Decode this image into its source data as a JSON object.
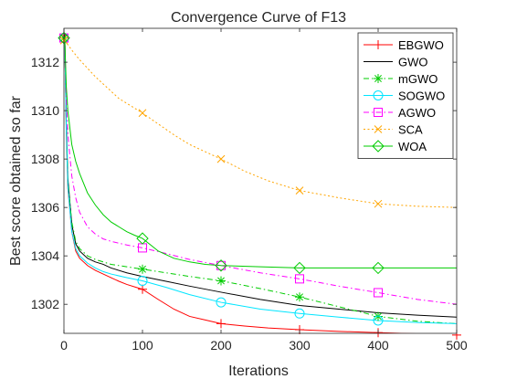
{
  "chart_data": {
    "type": "line",
    "title": "Convergence Curve of F13",
    "xlabel": "Iterations",
    "ylabel": "Best score obtained so far",
    "xlim": [
      0,
      500
    ],
    "ylim": [
      1300.8,
      1313.4
    ],
    "xticks": [
      0,
      100,
      200,
      300,
      400,
      500
    ],
    "yticks": [
      1302,
      1304,
      1306,
      1308,
      1310,
      1312
    ],
    "grid": false,
    "legend_position": "top-right",
    "series": [
      {
        "name": "EBGWO",
        "color": "#ff0000",
        "marker": "plus",
        "line_style": "solid",
        "x": [
          1,
          3,
          5,
          10,
          15,
          20,
          30,
          40,
          50,
          60,
          70,
          80,
          90,
          100,
          120,
          140,
          160,
          180,
          200,
          230,
          260,
          300,
          350,
          400,
          450,
          500
        ],
        "y": [
          1313.1,
          1309.0,
          1306.8,
          1305.0,
          1304.2,
          1303.9,
          1303.6,
          1303.4,
          1303.25,
          1303.1,
          1302.95,
          1302.82,
          1302.72,
          1302.62,
          1302.2,
          1301.8,
          1301.5,
          1301.35,
          1301.2,
          1301.1,
          1301.02,
          1300.95,
          1300.88,
          1300.83,
          1300.78,
          1300.73
        ],
        "marker_x": [
          0,
          100,
          200,
          300,
          400,
          500
        ],
        "marker_y": [
          1313.1,
          1302.62,
          1301.2,
          1300.95,
          1300.83,
          1300.73
        ]
      },
      {
        "name": "GWO",
        "color": "#000000",
        "marker": "none",
        "line_style": "solid",
        "x": [
          1,
          3,
          5,
          10,
          15,
          20,
          30,
          40,
          50,
          60,
          80,
          100,
          130,
          160,
          200,
          250,
          300,
          350,
          400,
          450,
          500
        ],
        "y": [
          1313.2,
          1309.5,
          1307.2,
          1305.3,
          1304.5,
          1304.2,
          1303.9,
          1303.75,
          1303.65,
          1303.5,
          1303.3,
          1303.15,
          1302.95,
          1302.75,
          1302.5,
          1302.2,
          1301.95,
          1301.8,
          1301.65,
          1301.55,
          1301.47
        ]
      },
      {
        "name": "mGWO",
        "color": "#00cc00",
        "marker": "asterisk",
        "line_style": "dash-dot",
        "x": [
          1,
          3,
          5,
          10,
          15,
          20,
          30,
          40,
          50,
          60,
          80,
          100,
          130,
          160,
          200,
          250,
          300,
          350,
          400,
          450,
          500
        ],
        "y": [
          1313.0,
          1309.3,
          1307.0,
          1305.4,
          1304.6,
          1304.3,
          1304.0,
          1303.85,
          1303.75,
          1303.65,
          1303.55,
          1303.45,
          1303.3,
          1303.15,
          1302.97,
          1302.65,
          1302.3,
          1301.9,
          1301.5,
          1301.3,
          1301.2
        ],
        "marker_x": [
          0,
          100,
          200,
          300,
          400
        ],
        "marker_y": [
          1313.0,
          1303.45,
          1302.97,
          1302.3,
          1301.5
        ]
      },
      {
        "name": "SOGWO",
        "color": "#00e5ff",
        "marker": "circle",
        "line_style": "solid",
        "x": [
          1,
          3,
          5,
          10,
          15,
          20,
          30,
          40,
          50,
          60,
          80,
          100,
          130,
          160,
          200,
          250,
          300,
          350,
          400,
          450,
          500
        ],
        "y": [
          1313.0,
          1309.2,
          1306.9,
          1305.0,
          1304.3,
          1304.0,
          1303.7,
          1303.5,
          1303.35,
          1303.25,
          1303.1,
          1302.97,
          1302.7,
          1302.4,
          1302.08,
          1301.8,
          1301.62,
          1301.47,
          1301.33,
          1301.25,
          1301.2
        ],
        "marker_x": [
          0,
          100,
          200,
          300,
          400
        ],
        "marker_y": [
          1313.0,
          1302.97,
          1302.08,
          1301.62,
          1301.33
        ]
      },
      {
        "name": "AGWO",
        "color": "#ff00ff",
        "marker": "square",
        "line_style": "dash-dot",
        "x": [
          1,
          3,
          5,
          10,
          15,
          20,
          30,
          40,
          50,
          60,
          80,
          100,
          130,
          160,
          200,
          250,
          300,
          350,
          400,
          450,
          500
        ],
        "y": [
          1313.0,
          1310.5,
          1309.0,
          1307.3,
          1306.4,
          1305.8,
          1305.2,
          1304.9,
          1304.7,
          1304.6,
          1304.45,
          1304.33,
          1304.1,
          1303.85,
          1303.6,
          1303.3,
          1303.05,
          1302.75,
          1302.48,
          1302.2,
          1302.0
        ],
        "marker_x": [
          0,
          100,
          200,
          300,
          400
        ],
        "marker_y": [
          1313.0,
          1304.33,
          1303.6,
          1303.05,
          1302.48
        ]
      },
      {
        "name": "SCA",
        "color": "#ffa500",
        "marker": "x",
        "line_style": "dotted",
        "x": [
          1,
          10,
          20,
          30,
          40,
          50,
          60,
          70,
          80,
          90,
          100,
          120,
          140,
          160,
          180,
          200,
          230,
          260,
          300,
          350,
          400,
          450,
          500
        ],
        "y": [
          1312.9,
          1312.5,
          1312.1,
          1311.75,
          1311.4,
          1311.1,
          1310.8,
          1310.5,
          1310.3,
          1310.1,
          1309.9,
          1309.45,
          1309.0,
          1308.6,
          1308.3,
          1308.0,
          1307.5,
          1307.1,
          1306.7,
          1306.4,
          1306.15,
          1306.05,
          1306.0
        ],
        "marker_x": [
          0,
          100,
          200,
          300,
          400
        ],
        "marker_y": [
          1312.9,
          1309.9,
          1308.0,
          1306.7,
          1306.15
        ]
      },
      {
        "name": "WOA",
        "color": "#00cc00",
        "marker": "diamond",
        "line_style": "solid",
        "x": [
          1,
          3,
          5,
          10,
          15,
          20,
          30,
          40,
          50,
          60,
          70,
          80,
          90,
          100,
          120,
          140,
          160,
          180,
          200,
          250,
          300,
          400,
          500
        ],
        "y": [
          1313.0,
          1311.0,
          1310.0,
          1308.6,
          1307.9,
          1307.4,
          1306.6,
          1306.1,
          1305.7,
          1305.4,
          1305.2,
          1305.0,
          1304.85,
          1304.72,
          1304.2,
          1303.9,
          1303.75,
          1303.65,
          1303.6,
          1303.55,
          1303.5,
          1303.5,
          1303.5
        ],
        "marker_x": [
          0,
          100,
          200,
          300,
          400
        ],
        "marker_y": [
          1313.0,
          1304.72,
          1303.6,
          1303.5,
          1303.5
        ]
      }
    ]
  }
}
